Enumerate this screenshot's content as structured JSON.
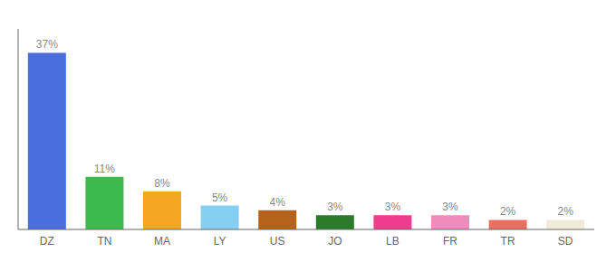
{
  "chart_data": {
    "type": "bar",
    "categories": [
      "DZ",
      "TN",
      "MA",
      "LY",
      "US",
      "JO",
      "LB",
      "FR",
      "TR",
      "SD"
    ],
    "values": [
      37,
      11,
      8,
      5,
      4,
      3,
      3,
      3,
      2,
      2
    ],
    "value_labels": [
      "37%",
      "11%",
      "8%",
      "5%",
      "4%",
      "3%",
      "3%",
      "3%",
      "2%",
      "2%"
    ],
    "data_labels": true,
    "colors": [
      "#4a6edc",
      "#3dba4e",
      "#f5a623",
      "#85d0f0",
      "#b5631a",
      "#2a7a2a",
      "#f03c8c",
      "#f08cbc",
      "#e87060",
      "#f0ead8"
    ],
    "ylim": [
      0,
      42
    ],
    "grid": false,
    "tick_labels": "x"
  }
}
